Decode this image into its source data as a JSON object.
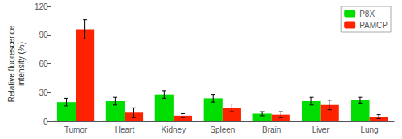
{
  "chart_data": {
    "type": "bar",
    "categories": [
      "Tumor",
      "Heart",
      "Kidney",
      "Spleen",
      "Brain",
      "Liver",
      "Lung"
    ],
    "series": [
      {
        "name": "P8X",
        "color": "#00dd00",
        "values": [
          20,
          21,
          28,
          24,
          8,
          21,
          22
        ],
        "errors": [
          4,
          4,
          4,
          4,
          2,
          4,
          3
        ]
      },
      {
        "name": "PAMCP",
        "color": "#ff2200",
        "values": [
          96,
          9,
          6,
          14,
          7,
          17,
          5
        ],
        "errors": [
          10,
          5,
          2,
          4,
          3,
          5,
          2
        ]
      }
    ],
    "ylabel": "Relative fluorescence\nintensity (%)",
    "ylim": [
      0,
      120
    ],
    "yticks": [
      0,
      30,
      60,
      90,
      120
    ],
    "grid": false,
    "legend": "upper right"
  }
}
